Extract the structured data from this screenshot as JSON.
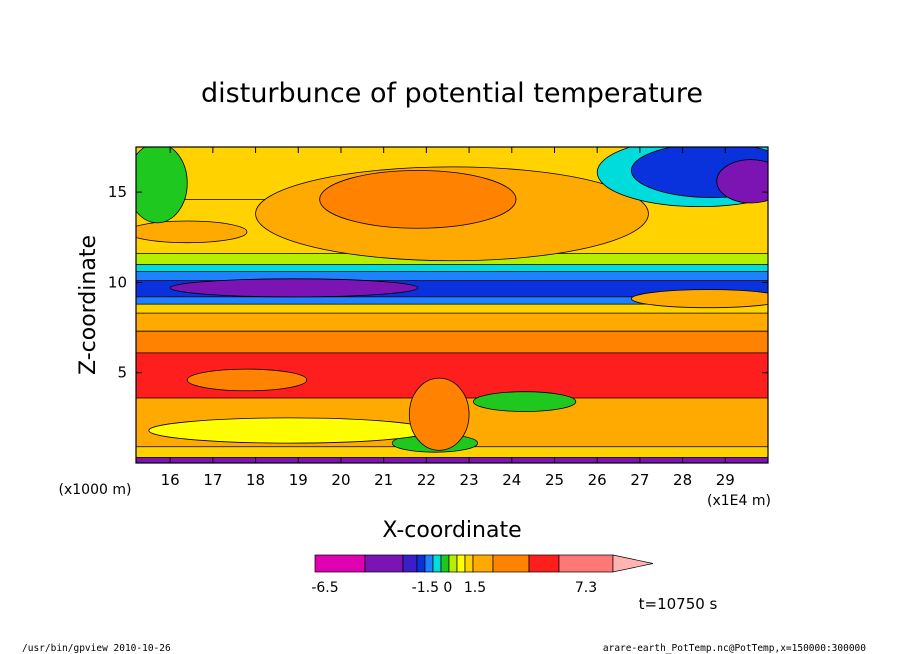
{
  "chart_data": {
    "type": "heatmap",
    "title": "disturbunce of potential temperature",
    "xlabel": "X-coordinate",
    "ylabel": "Z-coordinate",
    "x_unit": "(x1E4 m)",
    "y_unit": "(x1000 m)",
    "xlim": [
      15.2,
      30.0
    ],
    "ylim": [
      0,
      17.5
    ],
    "xticks": [
      "16",
      "17",
      "18",
      "19",
      "20",
      "21",
      "22",
      "23",
      "24",
      "25",
      "26",
      "27",
      "28",
      "29"
    ],
    "yticks": [
      "5",
      "10",
      "15"
    ],
    "colorbar": {
      "labels": [
        "-6.5",
        "-1.5 0",
        "1.5",
        "7.3"
      ],
      "colors": [
        "#e000b4",
        "#7c14b4",
        "#3c1ec8",
        "#0a32dc",
        "#1e82ff",
        "#00dcdc",
        "#1ec81e",
        "#b4f000",
        "#ffff00",
        "#ffd200",
        "#ffaa00",
        "#ff8200",
        "#ff1e1e",
        "#ff7878",
        "#ffb4b4"
      ]
    },
    "time_label": "t=10750 s",
    "footer_left": "/usr/bin/gpview   2010-10-26",
    "footer_right": "arare-earth_PotTemp.nc@PotTemp,x=150000:300000",
    "bands": [
      {
        "z0": 0.0,
        "z1": 0.3,
        "color": "#7c14b4"
      },
      {
        "z0": 0.3,
        "z1": 0.9,
        "color": "#ffd200"
      },
      {
        "z0": 0.9,
        "z1": 3.6,
        "color": "#ffaa00"
      },
      {
        "z0": 3.6,
        "z1": 6.1,
        "color": "#ff1e1e"
      },
      {
        "z0": 6.1,
        "z1": 7.3,
        "color": "#ff8200"
      },
      {
        "z0": 7.3,
        "z1": 8.3,
        "color": "#ffaa00"
      },
      {
        "z0": 8.3,
        "z1": 8.8,
        "color": "#ffd200"
      },
      {
        "z0": 8.8,
        "z1": 9.2,
        "color": "#1e82ff"
      },
      {
        "z0": 9.2,
        "z1": 10.1,
        "color": "#0a32dc"
      },
      {
        "z0": 10.1,
        "z1": 10.6,
        "color": "#1e82ff"
      },
      {
        "z0": 10.6,
        "z1": 11.0,
        "color": "#00dcdc"
      },
      {
        "z0": 11.0,
        "z1": 11.6,
        "color": "#b4f000"
      },
      {
        "z0": 11.6,
        "z1": 14.6,
        "color": "#ffd200"
      },
      {
        "z0": 14.6,
        "z1": 17.5,
        "color": "#ffd200"
      }
    ],
    "blobs": [
      {
        "cx": 22.6,
        "cz": 13.8,
        "rx": 4.6,
        "rz": 2.6,
        "color": "#ffaa00"
      },
      {
        "cx": 21.8,
        "cz": 14.6,
        "rx": 2.3,
        "rz": 1.6,
        "color": "#ff8200"
      },
      {
        "cx": 16.4,
        "cz": 12.8,
        "rx": 1.4,
        "rz": 0.6,
        "color": "#ffaa00"
      },
      {
        "cx": 28.4,
        "cz": 16.1,
        "rx": 2.4,
        "rz": 1.9,
        "color": "#00dcdc"
      },
      {
        "cx": 28.7,
        "cz": 16.2,
        "rx": 1.9,
        "rz": 1.5,
        "color": "#0a32dc"
      },
      {
        "cx": 29.6,
        "cz": 15.6,
        "rx": 0.8,
        "rz": 1.2,
        "color": "#7c14b4"
      },
      {
        "cx": 15.7,
        "cz": 15.5,
        "rx": 0.7,
        "rz": 2.2,
        "color": "#1ec81e"
      },
      {
        "cx": 18.9,
        "cz": 9.7,
        "rx": 2.9,
        "rz": 0.5,
        "color": "#7c14b4"
      },
      {
        "cx": 24.3,
        "cz": 3.4,
        "rx": 1.2,
        "rz": 0.55,
        "color": "#1ec81e"
      },
      {
        "cx": 22.2,
        "cz": 1.1,
        "rx": 1.0,
        "rz": 0.5,
        "color": "#1ec81e"
      },
      {
        "cx": 18.8,
        "cz": 1.8,
        "rx": 3.3,
        "rz": 0.7,
        "color": "#ffff00"
      },
      {
        "cx": 17.8,
        "cz": 4.6,
        "rx": 1.4,
        "rz": 0.6,
        "color": "#ff8200"
      },
      {
        "cx": 22.3,
        "cz": 2.7,
        "rx": 0.7,
        "rz": 2.0,
        "color": "#ff8200"
      },
      {
        "cx": 28.6,
        "cz": 9.1,
        "rx": 1.8,
        "rz": 0.5,
        "color": "#ffaa00"
      }
    ]
  }
}
